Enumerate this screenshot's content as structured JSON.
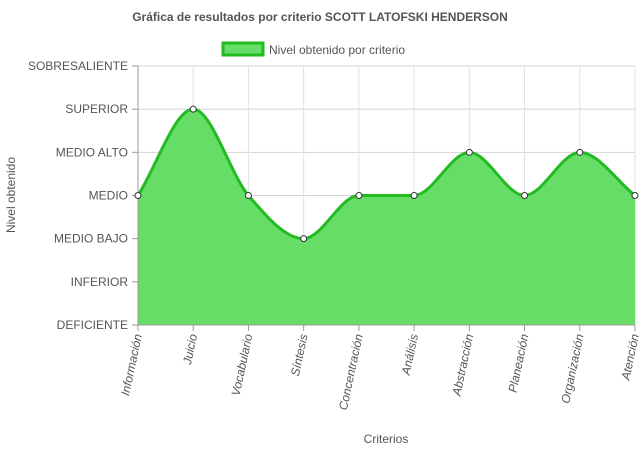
{
  "chart_data": {
    "type": "area",
    "title": "Gráfica de resultados por criterio SCOTT LATOFSKI HENDERSON",
    "xlabel": "Criterios",
    "ylabel": "Nivel obtenido",
    "legend_position": "top-center",
    "grid": true,
    "categories": [
      "Información",
      "Juicio",
      "Vocabulario",
      "Síntesis",
      "Concentración",
      "Análisis",
      "Abstracción",
      "Planeación",
      "Organización",
      "Atención"
    ],
    "y_levels": [
      "DEFICIENTE",
      "INFERIOR",
      "MEDIO BAJO",
      "MEDIO",
      "MEDIO ALTO",
      "SUPERIOR",
      "SOBRESALIENTE"
    ],
    "series": [
      {
        "name": "Nivel obtenido por criterio",
        "values": [
          3,
          5,
          3,
          2,
          3,
          3,
          4,
          3,
          4,
          3
        ],
        "fill_color": "#66dd66",
        "line_color": "#22bb22"
      }
    ]
  }
}
